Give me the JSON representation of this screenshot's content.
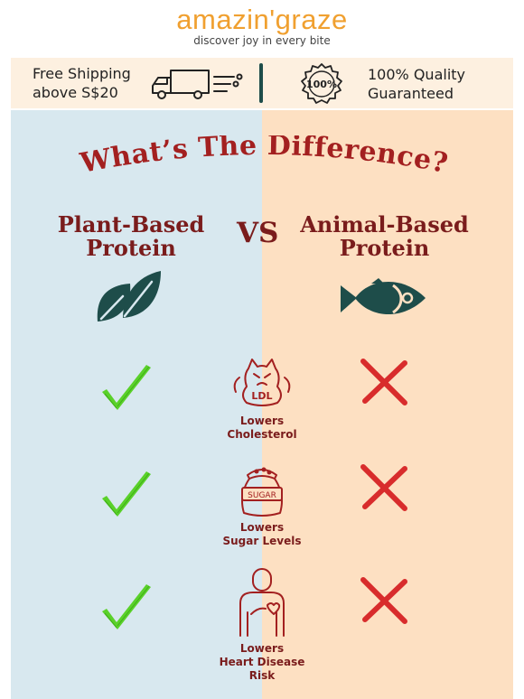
{
  "header": {
    "logo": "amazin'graze",
    "tagline": "discover joy in every bite"
  },
  "banner": {
    "shipping_line1": "Free Shipping",
    "shipping_line2": "above S$20",
    "badge_text": "100%",
    "quality_line1": "100% Quality",
    "quality_line2": "Guaranteed"
  },
  "headline": "What’s The Difference?",
  "columns": {
    "left_line1": "Plant-Based",
    "left_line2": "Protein",
    "vs": "VS",
    "right_line1": "Animal-Based",
    "right_line2": "Protein"
  },
  "benefits": [
    {
      "line1": "Lowers",
      "line2": "Cholesterol",
      "line3": "",
      "icon_text": "LDL",
      "plant": "check",
      "animal": "cross"
    },
    {
      "line1": "Lowers",
      "line2": "Sugar Levels",
      "line3": "",
      "icon_text": "SUGAR",
      "plant": "check",
      "animal": "cross"
    },
    {
      "line1": "Lowers",
      "line2": "Heart Disease",
      "line3": "Risk",
      "icon_text": "",
      "plant": "check",
      "animal": "cross"
    }
  ],
  "colors": {
    "accent_orange": "#f0a030",
    "dark_red": "#7a1c1c",
    "teal": "#1e4d4a",
    "check_green": "#5ad12a",
    "cross_red": "#d82c2c",
    "left_bg": "#d8e8ef",
    "right_bg": "#fde0c2"
  },
  "icons": [
    "truck-icon",
    "quality-badge-icon",
    "leaf-icon",
    "fish-icon",
    "cholesterol-icon",
    "sugar-sack-icon",
    "heart-person-icon",
    "check-icon",
    "cross-icon"
  ]
}
